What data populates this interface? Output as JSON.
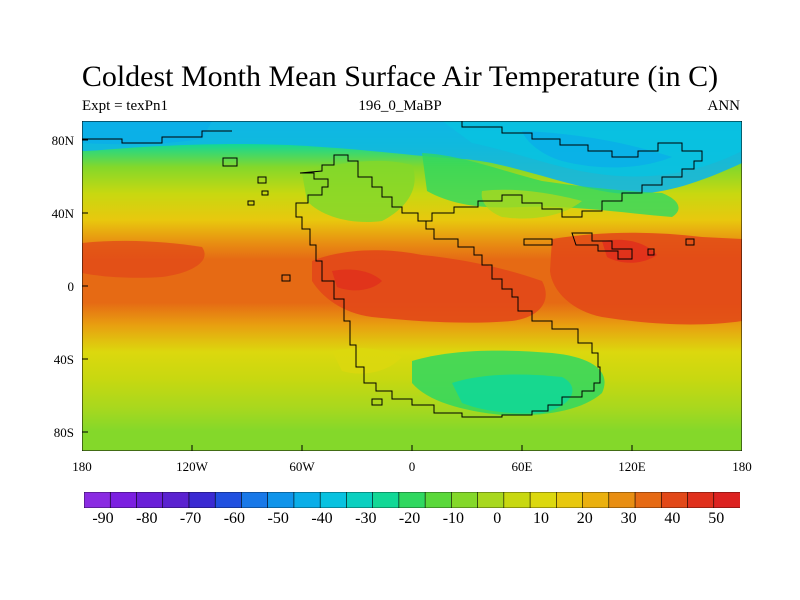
{
  "title": "Coldest Month Mean Surface Air Temperature (in C)",
  "subtitle_left": "Expt = texPn1",
  "subtitle_center": "196_0_MaBP",
  "subtitle_right": "ANN",
  "lat_ticks": [
    "80N",
    "40N",
    "0",
    "40S",
    "80S"
  ],
  "lon_ticks": [
    "180",
    "120W",
    "60W",
    "0",
    "60E",
    "120E",
    "180"
  ],
  "colorbar": {
    "labels": [
      "-90",
      "-80",
      "-70",
      "-60",
      "-50",
      "-40",
      "-30",
      "-20",
      "-10",
      "0",
      "10",
      "20",
      "30",
      "40",
      "50"
    ],
    "colors": [
      "#8a2be2",
      "#7b1fe0",
      "#6a1fd8",
      "#5a22d0",
      "#3a2ad2",
      "#2050e0",
      "#1878e8",
      "#0f94ea",
      "#0aaee8",
      "#08c2e0",
      "#0ad0c0",
      "#12d896",
      "#30d860",
      "#5ad83a",
      "#84d82a",
      "#a8d81e",
      "#c8d810",
      "#dcd80e",
      "#e8c80e",
      "#eab00e",
      "#e88e12",
      "#e66a14",
      "#e24818",
      "#e0301c",
      "#dc2220"
    ]
  },
  "map_data": {
    "lon_range": [
      -180,
      180
    ],
    "lat_range": [
      -90,
      90
    ],
    "projection": "cylindrical-equidistant",
    "units": "C",
    "field": "coldest month mean surface air temperature"
  }
}
